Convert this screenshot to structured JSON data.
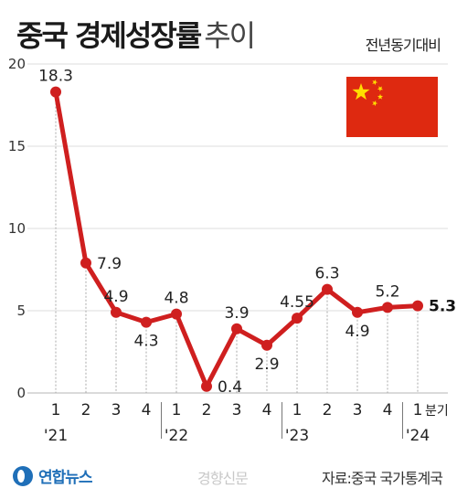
{
  "header": {
    "title": "중국 경제성장률",
    "title_sub": "추이",
    "unit": "전년동기대비"
  },
  "footer": {
    "logo": "연합뉴스",
    "watermark": "경향신문",
    "source": "자료:중국 국가통계국"
  },
  "icons": {
    "flag": "china-flag-icon",
    "logo": "yonhap-logo-icon"
  },
  "colors": {
    "line": "#cf1f1f",
    "flag_red": "#de2910",
    "flag_star": "#ffde00",
    "logo_blue": "#1f6fb8"
  },
  "chart_data": {
    "type": "line",
    "title": "중국 경제성장률 추이",
    "ylim": [
      0,
      20
    ],
    "y_ticks": [
      "0",
      "5",
      "10",
      "15",
      "20"
    ],
    "categories": [
      "1",
      "2",
      "3",
      "4",
      "1",
      "2",
      "3",
      "4",
      "1",
      "2",
      "3",
      "4",
      "1"
    ],
    "year_labels": [
      {
        "index": 0,
        "label": "'21"
      },
      {
        "index": 4,
        "label": "'22"
      },
      {
        "index": 8,
        "label": "'23"
      },
      {
        "index": 12,
        "label": "'24"
      }
    ],
    "x_suffix": "분기",
    "values": [
      18.3,
      7.9,
      4.9,
      4.3,
      4.8,
      0.4,
      3.9,
      2.9,
      4.55,
      6.3,
      4.9,
      5.2,
      5.3
    ],
    "data_labels": [
      "18.3",
      "7.9",
      "4.9",
      "4.3",
      "4.8",
      "0.4",
      "3.9",
      "2.9",
      "4.55",
      "6.3",
      "4.9",
      "5.2",
      "5.3"
    ],
    "label_positions": [
      "above",
      "right",
      "above",
      "below",
      "above",
      "right",
      "above",
      "below",
      "above",
      "above",
      "below",
      "above",
      "right"
    ],
    "last_label_unit": "%",
    "grid": true
  }
}
